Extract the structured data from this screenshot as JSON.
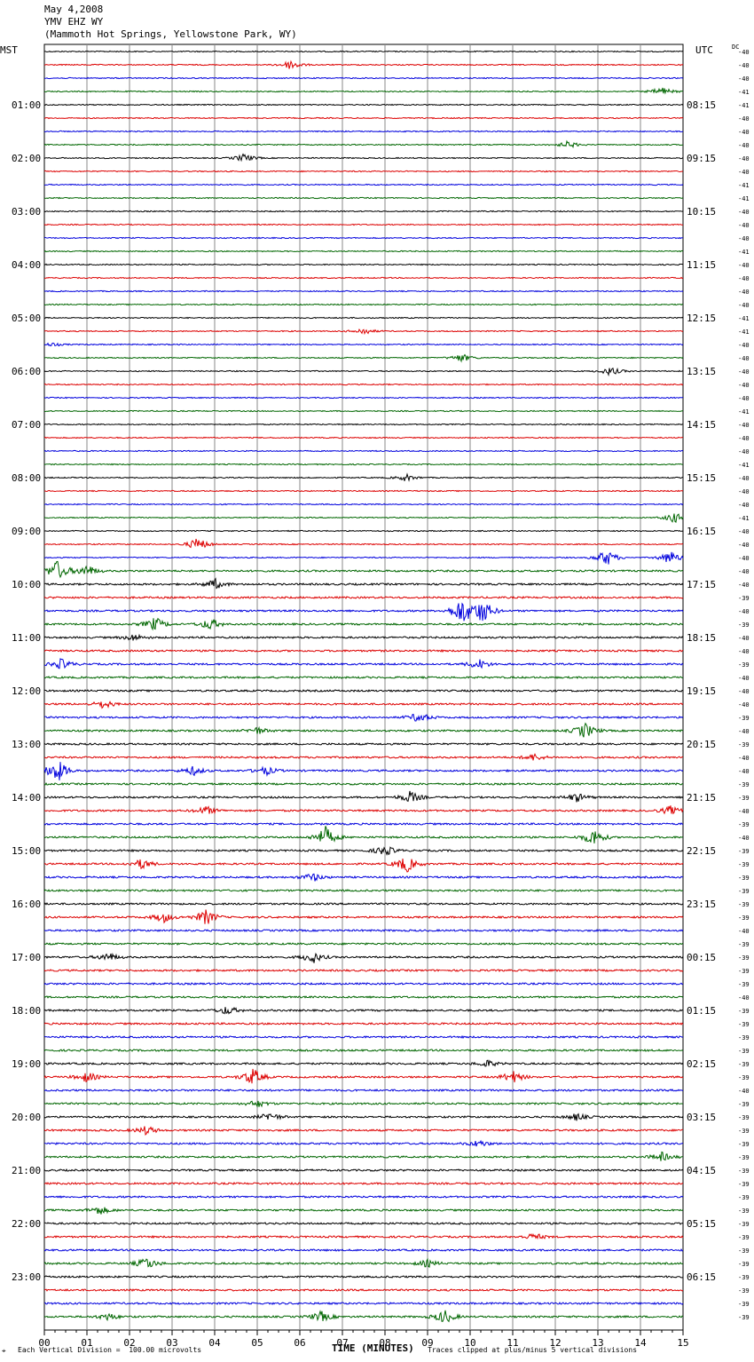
{
  "header": {
    "date": "May 4,2008",
    "station": "YMV EHZ WY",
    "location": "(Mammoth Hot Springs, Yellowstone Park, WY)"
  },
  "left_tz": "MST",
  "right_tz": "UTC",
  "dc_label": "DC",
  "chart_data": {
    "type": "line",
    "xlabel": "TIME (MINUTES)",
    "xlim": [
      0,
      15
    ],
    "x_ticks": [
      "00",
      "01",
      "02",
      "03",
      "04",
      "05",
      "06",
      "07",
      "08",
      "09",
      "10",
      "11",
      "12",
      "13",
      "14",
      "15"
    ],
    "rows_per_hour": 4,
    "row_minutes": 15,
    "trace_colors": [
      "#000000",
      "#dd0000",
      "#0000dd",
      "#006600"
    ],
    "left_hour_labels": [
      "01:00",
      "02:00",
      "03:00",
      "04:00",
      "05:00",
      "06:00",
      "07:00",
      "08:00",
      "09:00",
      "10:00",
      "11:00",
      "12:00",
      "13:00",
      "14:00",
      "15:00",
      "16:00",
      "17:00",
      "18:00",
      "19:00",
      "20:00",
      "21:00",
      "22:00",
      "23:00"
    ],
    "right_hour_labels": [
      "08:15",
      "09:15",
      "10:15",
      "11:15",
      "12:15",
      "13:15",
      "14:15",
      "15:15",
      "16:15",
      "17:15",
      "18:15",
      "19:15",
      "20:15",
      "21:15",
      "22:15",
      "23:15",
      "00:15",
      "01:15",
      "02:15",
      "03:15",
      "04:15",
      "05:15",
      "06:15"
    ],
    "dc_offsets": [
      "-40",
      "-40",
      "-40",
      "-41",
      "-41",
      "-40",
      "-40",
      "-40",
      "-40",
      "-40",
      "-41",
      "-41",
      "-40",
      "-40",
      "-40",
      "-41",
      "-40",
      "-40",
      "-40",
      "-40",
      "-41",
      "-41",
      "-40",
      "-40",
      "-40",
      "-40",
      "-40",
      "-41",
      "-40",
      "-40",
      "-40",
      "-41",
      "-40",
      "-40",
      "-40",
      "-41",
      "-40",
      "-40",
      "-40",
      "-40",
      "-40",
      "-39",
      "-40",
      "-39",
      "-40",
      "-40",
      "-39",
      "-40",
      "-40",
      "-40",
      "-39",
      "-40",
      "-39",
      "-40",
      "-40",
      "-39",
      "-39",
      "-40",
      "-39",
      "-40",
      "-39",
      "-39",
      "-39",
      "-39",
      "-39",
      "-39",
      "-40",
      "-39",
      "-39",
      "-39",
      "-39",
      "-40",
      "-39",
      "-39",
      "-39",
      "-39",
      "-39",
      "-39",
      "-40",
      "-39",
      "-39",
      "-39",
      "-39",
      "-39",
      "-39",
      "-39",
      "-39",
      "-39",
      "-39",
      "-39",
      "-39",
      "-39",
      "-39",
      "-39",
      "-39",
      "-39"
    ],
    "events": [
      {
        "row": 1,
        "minute": 5.8,
        "amp": 6
      },
      {
        "row": 3,
        "minute": 14.5,
        "amp": 5
      },
      {
        "row": 7,
        "minute": 12.3,
        "amp": 4
      },
      {
        "row": 8,
        "minute": 4.7,
        "amp": 5
      },
      {
        "row": 21,
        "minute": 7.5,
        "amp": 4
      },
      {
        "row": 22,
        "minute": 0.2,
        "amp": 2
      },
      {
        "row": 23,
        "minute": 9.8,
        "amp": 5
      },
      {
        "row": 24,
        "minute": 13.3,
        "amp": 5
      },
      {
        "row": 32,
        "minute": 8.5,
        "amp": 4
      },
      {
        "row": 35,
        "minute": 14.8,
        "amp": 6
      },
      {
        "row": 37,
        "minute": 3.6,
        "amp": 8
      },
      {
        "row": 38,
        "minute": 13.2,
        "amp": 10
      },
      {
        "row": 38,
        "minute": 14.7,
        "amp": 8
      },
      {
        "row": 39,
        "minute": 0.3,
        "amp": 12
      },
      {
        "row": 39,
        "minute": 1.0,
        "amp": 7
      },
      {
        "row": 40,
        "minute": 4.0,
        "amp": 6
      },
      {
        "row": 42,
        "minute": 9.8,
        "amp": 16
      },
      {
        "row": 42,
        "minute": 10.3,
        "amp": 14
      },
      {
        "row": 43,
        "minute": 2.6,
        "amp": 8
      },
      {
        "row": 43,
        "minute": 3.9,
        "amp": 7
      },
      {
        "row": 44,
        "minute": 2.1,
        "amp": 4
      },
      {
        "row": 46,
        "minute": 0.4,
        "amp": 6
      },
      {
        "row": 46,
        "minute": 10.2,
        "amp": 6
      },
      {
        "row": 49,
        "minute": 1.4,
        "amp": 5
      },
      {
        "row": 50,
        "minute": 8.8,
        "amp": 6
      },
      {
        "row": 51,
        "minute": 12.7,
        "amp": 9
      },
      {
        "row": 51,
        "minute": 5.0,
        "amp": 4
      },
      {
        "row": 53,
        "minute": 11.5,
        "amp": 4
      },
      {
        "row": 54,
        "minute": 0.3,
        "amp": 14
      },
      {
        "row": 54,
        "minute": 3.5,
        "amp": 5
      },
      {
        "row": 54,
        "minute": 5.2,
        "amp": 5
      },
      {
        "row": 56,
        "minute": 8.6,
        "amp": 7
      },
      {
        "row": 56,
        "minute": 12.5,
        "amp": 5
      },
      {
        "row": 57,
        "minute": 3.8,
        "amp": 5
      },
      {
        "row": 57,
        "minute": 14.7,
        "amp": 5
      },
      {
        "row": 59,
        "minute": 6.6,
        "amp": 12
      },
      {
        "row": 59,
        "minute": 12.9,
        "amp": 10
      },
      {
        "row": 60,
        "minute": 8.0,
        "amp": 6
      },
      {
        "row": 61,
        "minute": 2.3,
        "amp": 6
      },
      {
        "row": 61,
        "minute": 8.5,
        "amp": 10
      },
      {
        "row": 62,
        "minute": 6.3,
        "amp": 5
      },
      {
        "row": 65,
        "minute": 3.8,
        "amp": 9
      },
      {
        "row": 65,
        "minute": 2.8,
        "amp": 6
      },
      {
        "row": 68,
        "minute": 1.5,
        "amp": 5
      },
      {
        "row": 68,
        "minute": 6.3,
        "amp": 7
      },
      {
        "row": 72,
        "minute": 4.3,
        "amp": 5
      },
      {
        "row": 76,
        "minute": 10.4,
        "amp": 4
      },
      {
        "row": 77,
        "minute": 1.0,
        "amp": 6
      },
      {
        "row": 77,
        "minute": 4.9,
        "amp": 10
      },
      {
        "row": 77,
        "minute": 11.0,
        "amp": 7
      },
      {
        "row": 79,
        "minute": 5.0,
        "amp": 4
      },
      {
        "row": 80,
        "minute": 5.3,
        "amp": 5
      },
      {
        "row": 80,
        "minute": 12.5,
        "amp": 4
      },
      {
        "row": 81,
        "minute": 2.4,
        "amp": 5
      },
      {
        "row": 82,
        "minute": 10.2,
        "amp": 4
      },
      {
        "row": 83,
        "minute": 14.5,
        "amp": 5
      },
      {
        "row": 87,
        "minute": 1.3,
        "amp": 5
      },
      {
        "row": 89,
        "minute": 11.5,
        "amp": 4
      },
      {
        "row": 91,
        "minute": 2.4,
        "amp": 7
      },
      {
        "row": 91,
        "minute": 9.0,
        "amp": 4
      },
      {
        "row": 95,
        "minute": 6.5,
        "amp": 6
      },
      {
        "row": 95,
        "minute": 9.4,
        "amp": 8
      },
      {
        "row": 95,
        "minute": 1.5,
        "amp": 4
      }
    ]
  },
  "footer": {
    "left_mark": "⌖",
    "scale_text": "Each Vertical Division =  100.00 microvolts",
    "clip_text": "Traces clipped at plus/minus 5 vertical divisions"
  }
}
